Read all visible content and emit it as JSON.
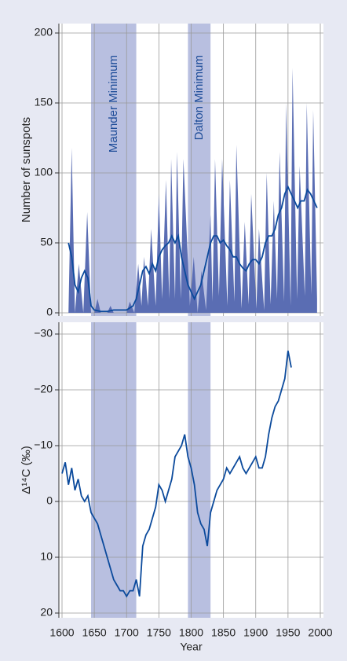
{
  "chart_data": [
    {
      "type": "area",
      "ylabel": "Number of sunspots",
      "xlim": [
        1600,
        2000
      ],
      "xticks": [
        1600,
        1650,
        1700,
        1750,
        1800,
        1850,
        1900,
        1950,
        2000
      ],
      "ylim": [
        0,
        200
      ],
      "yticks": [
        0,
        50,
        100,
        150,
        200
      ],
      "grid": true,
      "shaded_regions": [
        {
          "label": "Maunder Minimum",
          "start": 1645,
          "end": 1715,
          "color": "#b8bfe0"
        },
        {
          "label": "Dalton Minimum",
          "start": 1795,
          "end": 1830,
          "color": "#b8bfe0"
        }
      ],
      "series": [
        {
          "style": "area",
          "color": "#5a6db3",
          "x": [
            1610,
            1615,
            1620,
            1626,
            1633,
            1639,
            1645,
            1650,
            1655,
            1660,
            1670,
            1675,
            1680,
            1700,
            1705,
            1712,
            1718,
            1723,
            1727,
            1733,
            1738,
            1745,
            1750,
            1755,
            1761,
            1766,
            1769,
            1775,
            1778,
            1784,
            1788,
            1798,
            1804,
            1810,
            1816,
            1823,
            1830,
            1833,
            1837,
            1843,
            1848,
            1856,
            1860,
            1867,
            1870,
            1878,
            1883,
            1889,
            1893,
            1901,
            1905,
            1913,
            1917,
            1923,
            1928,
            1933,
            1937,
            1944,
            1947,
            1954,
            1957,
            1964,
            1968,
            1976,
            1979,
            1986,
            1989,
            1995
          ],
          "values": [
            0,
            118,
            0,
            35,
            0,
            72,
            0,
            0,
            10,
            0,
            0,
            5,
            0,
            0,
            8,
            0,
            35,
            5,
            40,
            5,
            60,
            5,
            85,
            10,
            95,
            10,
            110,
            10,
            115,
            10,
            110,
            5,
            40,
            0,
            30,
            2,
            70,
            8,
            110,
            12,
            110,
            5,
            95,
            8,
            120,
            3,
            65,
            6,
            85,
            3,
            60,
            2,
            100,
            6,
            80,
            10,
            115,
            8,
            150,
            5,
            175,
            10,
            105,
            12,
            150,
            13,
            145,
            10
          ]
        },
        {
          "style": "line",
          "color": "#0b4a9c",
          "x": [
            1610,
            1615,
            1620,
            1625,
            1630,
            1635,
            1640,
            1645,
            1650,
            1660,
            1670,
            1680,
            1690,
            1700,
            1710,
            1715,
            1720,
            1725,
            1730,
            1735,
            1740,
            1745,
            1750,
            1755,
            1760,
            1765,
            1770,
            1775,
            1780,
            1785,
            1790,
            1795,
            1800,
            1805,
            1810,
            1815,
            1820,
            1825,
            1830,
            1835,
            1840,
            1845,
            1850,
            1855,
            1860,
            1865,
            1870,
            1875,
            1880,
            1885,
            1890,
            1895,
            1900,
            1905,
            1910,
            1915,
            1920,
            1925,
            1930,
            1935,
            1940,
            1945,
            1950,
            1955,
            1960,
            1965,
            1970,
            1975,
            1980,
            1985,
            1990,
            1995
          ],
          "values": [
            50,
            40,
            20,
            15,
            25,
            30,
            25,
            5,
            2,
            1,
            1,
            2,
            2,
            2,
            5,
            10,
            20,
            30,
            33,
            28,
            35,
            30,
            40,
            45,
            48,
            50,
            55,
            50,
            55,
            40,
            30,
            20,
            15,
            10,
            15,
            20,
            30,
            40,
            50,
            55,
            55,
            50,
            52,
            48,
            45,
            40,
            40,
            35,
            32,
            30,
            35,
            38,
            38,
            35,
            40,
            50,
            55,
            55,
            60,
            70,
            75,
            85,
            90,
            85,
            80,
            75,
            80,
            80,
            88,
            85,
            80,
            75
          ]
        }
      ]
    },
    {
      "type": "line",
      "ylabel": "Δ¹⁴C (‰)",
      "xlabel": "Year",
      "xlim": [
        1600,
        2000
      ],
      "xticks": [
        1600,
        1650,
        1700,
        1750,
        1800,
        1850,
        1900,
        1950,
        2000
      ],
      "ylim": [
        20,
        -30
      ],
      "yticks": [
        {
          "value": -30,
          "label": "−30"
        },
        {
          "value": -20,
          "label": "−20"
        },
        {
          "value": -10,
          "label": "−10"
        },
        0,
        10,
        20
      ],
      "grid": true,
      "shaded_regions": [
        {
          "start": 1645,
          "end": 1715,
          "color": "#b8bfe0"
        },
        {
          "start": 1795,
          "end": 1830,
          "color": "#b8bfe0"
        }
      ],
      "series": [
        {
          "style": "line",
          "color": "#0b4a9c",
          "x": [
            1600,
            1605,
            1610,
            1615,
            1620,
            1625,
            1630,
            1635,
            1640,
            1645,
            1650,
            1655,
            1660,
            1665,
            1670,
            1675,
            1680,
            1685,
            1690,
            1695,
            1700,
            1705,
            1710,
            1715,
            1720,
            1725,
            1730,
            1735,
            1740,
            1745,
            1750,
            1755,
            1760,
            1765,
            1770,
            1775,
            1780,
            1785,
            1790,
            1795,
            1800,
            1805,
            1810,
            1815,
            1820,
            1825,
            1830,
            1835,
            1840,
            1845,
            1850,
            1855,
            1860,
            1865,
            1870,
            1875,
            1880,
            1885,
            1890,
            1895,
            1900,
            1905,
            1910,
            1915,
            1920,
            1925,
            1930,
            1935,
            1940,
            1945,
            1950,
            1955
          ],
          "values": [
            -5,
            -7,
            -3,
            -6,
            -2,
            -4,
            -1,
            0,
            -1,
            2,
            3,
            4,
            6,
            8,
            10,
            12,
            14,
            15,
            16,
            16,
            17,
            16,
            16,
            14,
            17,
            8,
            6,
            5,
            3,
            1,
            -3,
            -2,
            0,
            -2,
            -4,
            -8,
            -9,
            -10,
            -12,
            -8,
            -6,
            -3,
            2,
            4,
            5,
            8,
            2,
            0,
            -2,
            -3,
            -4,
            -6,
            -5,
            -6,
            -7,
            -8,
            -6,
            -5,
            -6,
            -7,
            -8,
            -6,
            -6,
            -8,
            -12,
            -15,
            -17,
            -18,
            -20,
            -22,
            -27,
            -24
          ]
        }
      ]
    }
  ]
}
